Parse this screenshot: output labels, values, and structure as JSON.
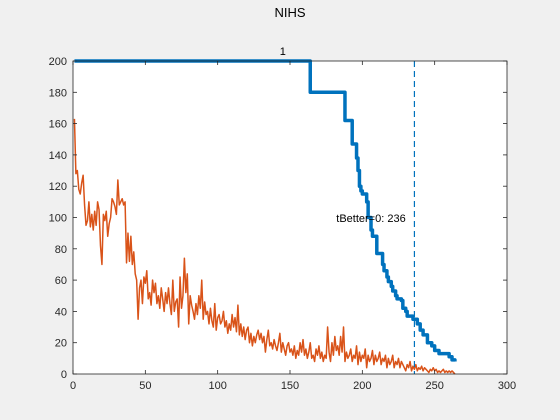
{
  "chart_data": {
    "type": "line",
    "title": "NIHS",
    "top_label": "1",
    "annotation": "tBetter=0: 236",
    "xlim": [
      0,
      300
    ],
    "ylim": [
      0,
      200
    ],
    "xticks": [
      0,
      50,
      100,
      150,
      200,
      250,
      300
    ],
    "yticks": [
      0,
      20,
      40,
      60,
      80,
      100,
      120,
      140,
      160,
      180,
      200
    ],
    "grid": false,
    "vline": {
      "x": 236,
      "color": "#0072bd",
      "style": "dashed"
    },
    "series": [
      {
        "color": "#0072bd",
        "style": "step",
        "x": [
          1,
          163,
          164,
          187,
          188,
          192,
          193,
          195,
          196,
          197,
          198,
          199,
          200,
          203,
          204,
          206,
          207,
          210,
          211,
          214,
          215,
          217,
          218,
          220,
          221,
          223,
          224,
          227,
          228,
          230,
          231,
          234,
          235,
          238,
          240,
          242,
          245,
          248,
          250,
          253,
          255,
          258,
          260,
          262,
          264
        ],
        "y": [
          200,
          200,
          180,
          180,
          162,
          162,
          147,
          147,
          138,
          130,
          120,
          117,
          115,
          110,
          100,
          92,
          88,
          77,
          77,
          70,
          66,
          62,
          59,
          56,
          53,
          50,
          48,
          47,
          42,
          40,
          37,
          37,
          35,
          32,
          28,
          25,
          20,
          18,
          15,
          13,
          13,
          13,
          11,
          9,
          8
        ]
      },
      {
        "color": "#d95319",
        "style": "line",
        "x": [
          1,
          2,
          3,
          4,
          5,
          6,
          7,
          8,
          9,
          10,
          11,
          12,
          13,
          14,
          15,
          16,
          17,
          18,
          19,
          20,
          21,
          22,
          23,
          24,
          25,
          26,
          27,
          28,
          29,
          30,
          31,
          32,
          33,
          34,
          35,
          36,
          37,
          38,
          39,
          40,
          41,
          42,
          43,
          44,
          45,
          46,
          47,
          48,
          49,
          50,
          51,
          52,
          53,
          54,
          55,
          56,
          57,
          58,
          59,
          60,
          61,
          62,
          63,
          64,
          65,
          66,
          67,
          68,
          69,
          70,
          71,
          72,
          73,
          74,
          75,
          76,
          77,
          78,
          79,
          80,
          81,
          82,
          83,
          84,
          85,
          86,
          87,
          88,
          89,
          90,
          91,
          92,
          93,
          94,
          95,
          96,
          97,
          98,
          99,
          100,
          101,
          102,
          103,
          104,
          105,
          106,
          107,
          108,
          109,
          110,
          111,
          112,
          113,
          114,
          115,
          116,
          117,
          118,
          119,
          120,
          121,
          122,
          123,
          124,
          125,
          126,
          127,
          128,
          129,
          130,
          131,
          132,
          133,
          134,
          135,
          136,
          137,
          138,
          139,
          140,
          141,
          142,
          143,
          144,
          145,
          146,
          147,
          148,
          149,
          150,
          151,
          152,
          153,
          154,
          155,
          156,
          157,
          158,
          159,
          160,
          161,
          162,
          163,
          164,
          165,
          166,
          167,
          168,
          169,
          170,
          171,
          172,
          173,
          174,
          175,
          176,
          177,
          178,
          179,
          180,
          181,
          182,
          183,
          184,
          185,
          186,
          187,
          188,
          189,
          190,
          191,
          192,
          193,
          194,
          195,
          196,
          197,
          198,
          199,
          200,
          201,
          202,
          203,
          204,
          205,
          206,
          207,
          208,
          209,
          210,
          211,
          212,
          213,
          214,
          215,
          216,
          217,
          218,
          219,
          220,
          221,
          222,
          223,
          224,
          225,
          226,
          227,
          228,
          229,
          230,
          231,
          232,
          233,
          234,
          235,
          236,
          237,
          238,
          239,
          240,
          241,
          242,
          243,
          244,
          245,
          246,
          247,
          248,
          249,
          250,
          251,
          252,
          253,
          254,
          255,
          256,
          257,
          258,
          259,
          260,
          261,
          262,
          263,
          264
        ],
        "y": [
          163,
          128,
          130,
          118,
          115,
          122,
          127,
          108,
          95,
          98,
          110,
          94,
          102,
          92,
          104,
          95,
          110,
          105,
          82,
          70,
          102,
          98,
          104,
          88,
          96,
          100,
          112,
          110,
          107,
          102,
          124,
          108,
          110,
          112,
          108,
          110,
          71,
          90,
          72,
          88,
          70,
          78,
          64,
          60,
          35,
          55,
          60,
          45,
          62,
          58,
          66,
          48,
          52,
          44,
          60,
          52,
          58,
          45,
          50,
          42,
          55,
          48,
          40,
          52,
          45,
          55,
          45,
          38,
          60,
          40,
          46,
          48,
          30,
          62,
          42,
          50,
          74,
          52,
          64,
          32,
          50,
          44,
          40,
          35,
          45,
          38,
          50,
          42,
          60,
          35,
          46,
          38,
          40,
          32,
          42,
          34,
          30,
          45,
          28,
          36,
          38,
          32,
          34,
          40,
          30,
          34,
          26,
          32,
          28,
          38,
          30,
          36,
          27,
          44,
          25,
          32,
          24,
          30,
          22,
          28,
          30,
          20,
          26,
          18,
          24,
          20,
          25,
          28,
          22,
          26,
          20,
          24,
          14,
          22,
          28,
          18,
          20,
          16,
          22,
          18,
          15,
          20,
          26,
          14,
          20,
          16,
          12,
          18,
          20,
          14,
          16,
          12,
          18,
          10,
          15,
          12,
          20,
          14,
          22,
          12,
          16,
          10,
          14,
          20,
          10,
          12,
          8,
          16,
          12,
          18,
          10,
          14,
          8,
          12,
          10,
          30,
          14,
          8,
          20,
          12,
          24,
          15,
          18,
          12,
          24,
          14,
          30,
          8,
          14,
          10,
          12,
          16,
          8,
          12,
          10,
          18,
          6,
          14,
          8,
          12,
          10,
          16,
          4,
          12,
          8,
          10,
          15,
          6,
          12,
          8,
          10,
          14,
          6,
          10,
          8,
          12,
          4,
          10,
          6,
          8,
          12,
          4,
          8,
          6,
          10,
          4,
          8,
          6,
          4,
          2,
          6,
          4,
          8,
          2,
          5,
          3,
          6,
          2,
          4,
          3,
          5,
          2,
          4,
          3,
          2,
          1,
          3,
          2,
          4,
          2,
          3,
          1,
          2,
          1,
          2,
          3,
          1,
          2,
          1,
          2,
          1,
          2,
          1,
          0
        ]
      }
    ]
  }
}
